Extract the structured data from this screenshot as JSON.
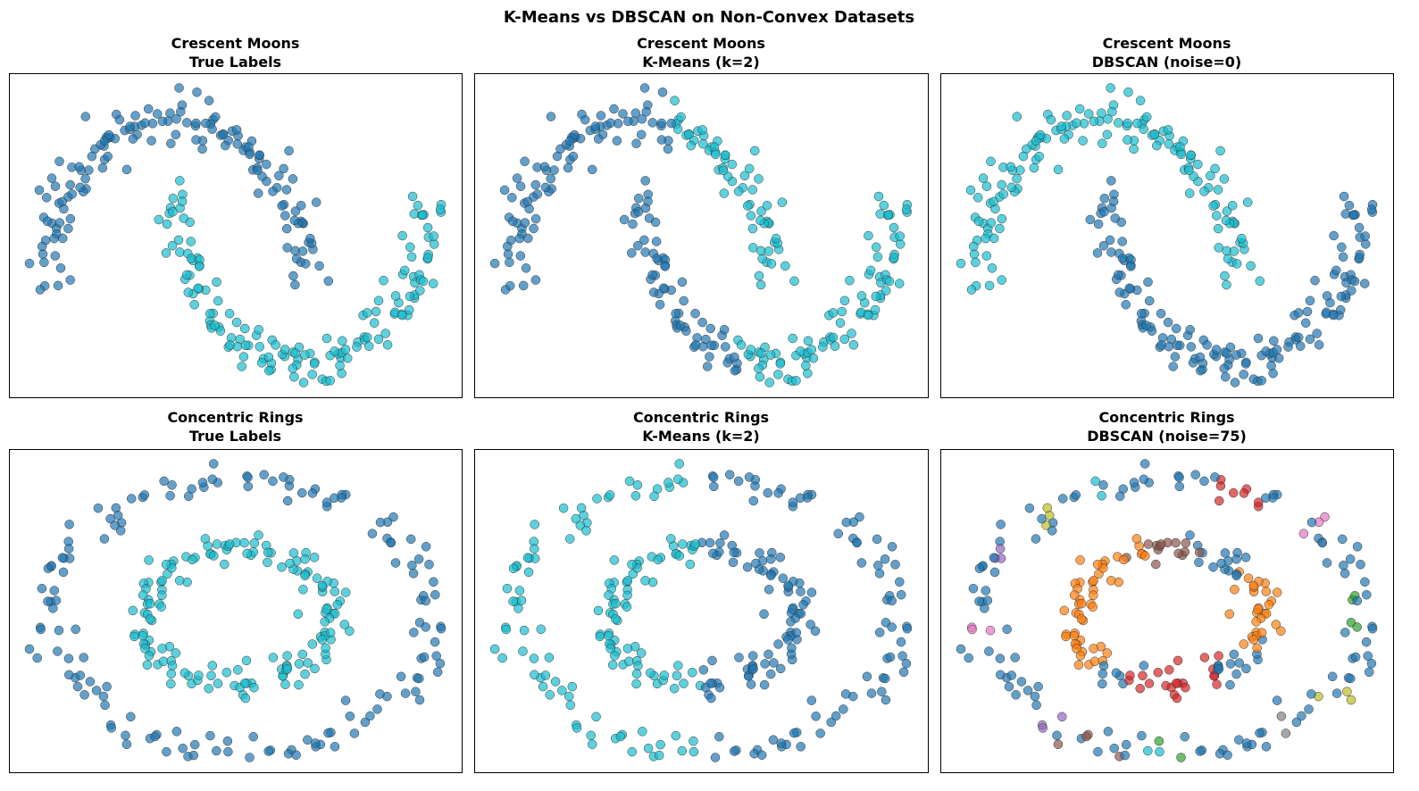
{
  "figure": {
    "title": "K-Means vs DBSCAN on Non-Convex Datasets"
  },
  "colors": {
    "blue": "#1f77b4",
    "cyan": "#17becf",
    "orange": "#ff7f0e",
    "green": "#2ca02c",
    "red": "#d62728",
    "purple": "#9467bd",
    "brown": "#8c564b",
    "pink": "#e377c2",
    "gray": "#7f7f7f",
    "olive": "#bcbd22"
  },
  "chart_data": [
    {
      "type": "scatter",
      "dataset": "moons",
      "title_line1": "Crescent Moons",
      "title_line2": "True Labels",
      "coloring": "true_labels",
      "series": [
        {
          "cluster": "upper moon",
          "color": "#1f77b4"
        },
        {
          "cluster": "lower moon",
          "color": "#17becf"
        }
      ],
      "xlabel": "",
      "ylabel": "",
      "grid": false,
      "ticks": false
    },
    {
      "type": "scatter",
      "dataset": "moons",
      "title_line1": "Crescent Moons",
      "title_line2": "K-Means (k=2)",
      "coloring": "kmeans",
      "series": [
        {
          "cluster": "left half",
          "color": "#1f77b4"
        },
        {
          "cluster": "right half",
          "color": "#17becf"
        }
      ],
      "xlabel": "",
      "ylabel": "",
      "grid": false,
      "ticks": false
    },
    {
      "type": "scatter",
      "dataset": "moons",
      "title_line1": "Crescent Moons",
      "title_line2": "DBSCAN (noise=0)",
      "coloring": "dbscan",
      "series": [
        {
          "cluster": "upper moon",
          "color": "#17becf"
        },
        {
          "cluster": "lower moon",
          "color": "#1f77b4"
        }
      ],
      "xlabel": "",
      "ylabel": "",
      "grid": false,
      "ticks": false
    },
    {
      "type": "scatter",
      "dataset": "rings",
      "title_line1": "Concentric Rings",
      "title_line2": "True Labels",
      "coloring": "true_labels",
      "series": [
        {
          "cluster": "outer ring",
          "color": "#1f77b4"
        },
        {
          "cluster": "inner ring",
          "color": "#17becf"
        }
      ],
      "xlabel": "",
      "ylabel": "",
      "grid": false,
      "ticks": false
    },
    {
      "type": "scatter",
      "dataset": "rings",
      "title_line1": "Concentric Rings",
      "title_line2": "K-Means (k=2)",
      "coloring": "kmeans",
      "series": [
        {
          "cluster": "left half",
          "color": "#17becf"
        },
        {
          "cluster": "right half",
          "color": "#1f77b4"
        }
      ],
      "xlabel": "",
      "ylabel": "",
      "grid": false,
      "ticks": false
    },
    {
      "type": "scatter",
      "dataset": "rings",
      "title_line1": "Concentric Rings",
      "title_line2": "DBSCAN (noise=75)",
      "coloring": "dbscan_fragmented",
      "series": [
        {
          "cluster": "noise",
          "color": "#1f77b4"
        },
        {
          "cluster": "inner left arc",
          "color": "#ff7f0e"
        },
        {
          "cluster": "inner right arc",
          "color": "#ff7f0e"
        },
        {
          "cluster": "inner bottom arc",
          "color": "#d62728"
        },
        {
          "cluster": "outer top arc",
          "color": "#d62728"
        },
        {
          "cluster": "inner top arc",
          "color": "#8c564b"
        },
        {
          "cluster": "outer bottom-left arc",
          "color": "#8c564b"
        },
        {
          "cluster": "outer left arc",
          "color": "#9467bd"
        },
        {
          "cluster": "outer bottom-left-2 arc",
          "color": "#9467bd"
        },
        {
          "cluster": "outer far-left arc",
          "color": "#e377c2"
        },
        {
          "cluster": "outer top-right arc",
          "color": "#e377c2"
        },
        {
          "cluster": "outer right arc",
          "color": "#2ca02c"
        },
        {
          "cluster": "outer bottom arc",
          "color": "#2ca02c"
        },
        {
          "cluster": "outer top-left arc",
          "color": "#bcbd22"
        },
        {
          "cluster": "outer bottom-right arc",
          "color": "#bcbd22"
        },
        {
          "cluster": "outer upper-right arc",
          "color": "#7f7f7f"
        },
        {
          "cluster": "outer lower-right arc",
          "color": "#7f7f7f"
        },
        {
          "cluster": "outer bottom cyan arc",
          "color": "#17becf"
        },
        {
          "cluster": "outer upper-right cyan arc",
          "color": "#17becf"
        }
      ],
      "xlabel": "",
      "ylabel": "",
      "grid": false,
      "ticks": false
    }
  ]
}
